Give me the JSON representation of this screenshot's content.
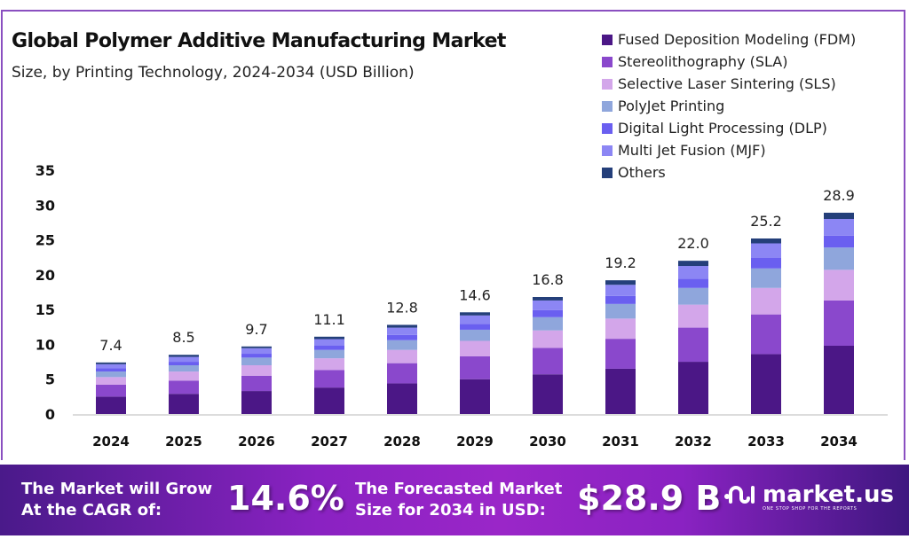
{
  "chart_data": {
    "type": "bar",
    "stacked": true,
    "title": "Global Polymer Additive Manufacturing Market",
    "subtitle": "Size, by Printing Technology, 2024-2034 (USD Billion)",
    "xlabel": "",
    "ylabel": "",
    "ylim": [
      0,
      35
    ],
    "yticks": [
      0,
      5,
      10,
      15,
      20,
      25,
      30,
      35
    ],
    "grid": false,
    "legend_position": "top-right",
    "categories": [
      "2024",
      "2025",
      "2026",
      "2027",
      "2028",
      "2029",
      "2030",
      "2031",
      "2032",
      "2033",
      "2034"
    ],
    "totals": [
      7.4,
      8.5,
      9.7,
      11.1,
      12.8,
      14.6,
      16.8,
      19.2,
      22.0,
      25.2,
      28.9
    ],
    "total_labels": [
      "7.4",
      "8.5",
      "9.7",
      "11.1",
      "12.8",
      "14.6",
      "16.8",
      "19.2",
      "22.0",
      "25.2",
      "28.9"
    ],
    "series": [
      {
        "name": "Fused Deposition Modeling (FDM)",
        "color": "#4b1786",
        "values": [
          2.5,
          2.9,
          3.3,
          3.8,
          4.4,
          5.0,
          5.7,
          6.5,
          7.5,
          8.6,
          9.8
        ]
      },
      {
        "name": "Stereolithography (SLA)",
        "color": "#8a48cc",
        "values": [
          1.7,
          1.9,
          2.2,
          2.5,
          2.9,
          3.3,
          3.8,
          4.3,
          4.9,
          5.7,
          6.5
        ]
      },
      {
        "name": "Selective Laser Sintering (SLS)",
        "color": "#d3a6ea",
        "values": [
          1.1,
          1.3,
          1.5,
          1.7,
          1.9,
          2.2,
          2.5,
          2.9,
          3.3,
          3.8,
          4.4
        ]
      },
      {
        "name": "PolyJet Printing",
        "color": "#8fa6dc",
        "values": [
          0.8,
          0.9,
          1.1,
          1.2,
          1.4,
          1.6,
          1.9,
          2.1,
          2.4,
          2.8,
          3.2
        ]
      },
      {
        "name": "Digital Light Processing (DLP)",
        "color": "#6a5ff0",
        "values": [
          0.45,
          0.5,
          0.55,
          0.65,
          0.75,
          0.85,
          1.0,
          1.15,
          1.3,
          1.5,
          1.7
        ]
      },
      {
        "name": "Multi Jet Fusion (MJF)",
        "color": "#8c86f4",
        "values": [
          0.6,
          0.7,
          0.8,
          0.9,
          1.05,
          1.2,
          1.4,
          1.6,
          1.85,
          2.1,
          2.4
        ]
      },
      {
        "name": "Others",
        "color": "#243f7a",
        "values": [
          0.25,
          0.3,
          0.25,
          0.35,
          0.4,
          0.45,
          0.5,
          0.65,
          0.75,
          0.7,
          0.9
        ]
      }
    ]
  },
  "banner": {
    "cagr_text_line1": "The Market will Grow",
    "cagr_text_line2": "At the CAGR of:",
    "cagr_value": "14.6%",
    "forecast_text_line1": "The Forecasted Market",
    "forecast_text_line2": "Size for 2034 in USD:",
    "forecast_value": "$28.9 B",
    "logo_mark": "ิ฿",
    "logo_name": "market.us",
    "logo_tagline": "ONE STOP SHOP FOR THE REPORTS"
  },
  "colors": {
    "frame": "#8a4fc0",
    "banner_start": "#4a1a8a",
    "banner_mid": "#9a26c8"
  }
}
